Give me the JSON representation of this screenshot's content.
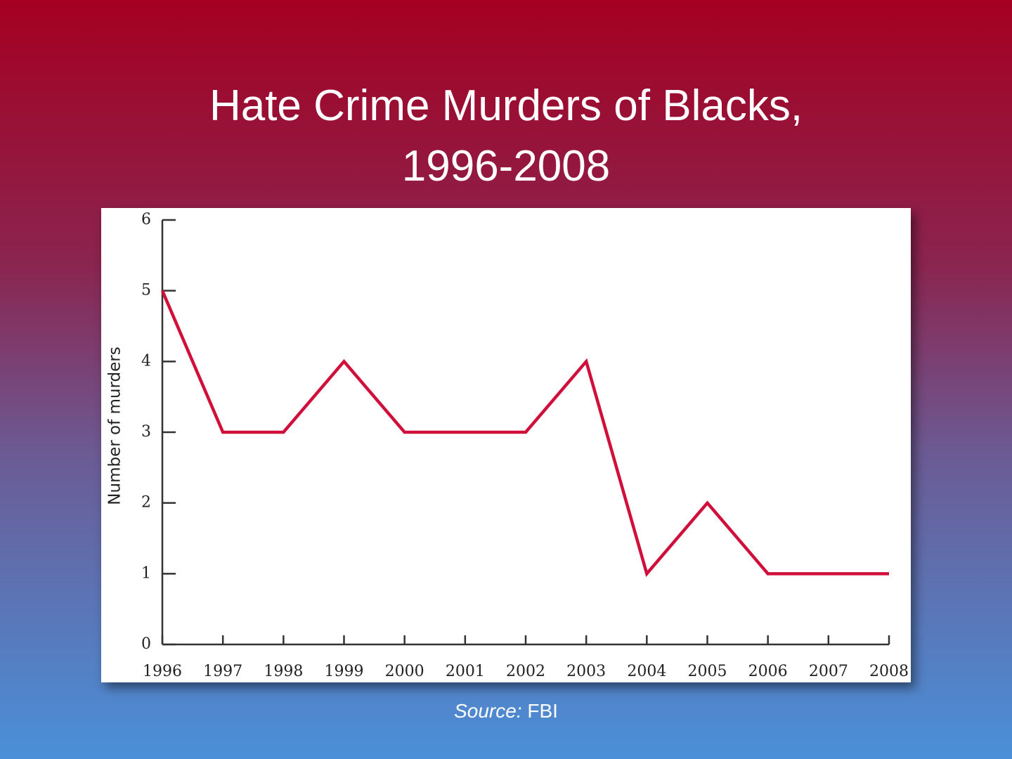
{
  "chart_data": {
    "type": "line",
    "title": "Hate Crime Murders of Blacks, 1996-2008",
    "y_label": "Number of murders",
    "categories": [
      "1996",
      "1997",
      "1998",
      "1999",
      "2000",
      "2001",
      "2002",
      "2003",
      "2004",
      "2005",
      "2006",
      "2007",
      "2008"
    ],
    "series": [
      {
        "name": "Hate crime murders of blacks",
        "color": "#d0103a",
        "values": [
          5,
          3,
          3,
          4,
          3,
          3,
          3,
          4,
          1,
          2,
          1,
          1,
          1
        ]
      }
    ],
    "ylim": [
      0,
      6
    ],
    "yticks": [
      0,
      1,
      2,
      3,
      4,
      5,
      6
    ],
    "grid": false,
    "source": {
      "label": "Source:",
      "text": "FBI"
    }
  }
}
